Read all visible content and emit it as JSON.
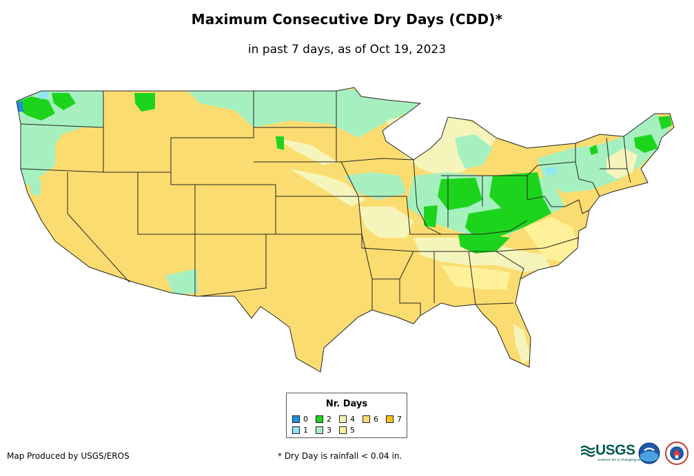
{
  "title": "Maximum Consecutive Dry Days (CDD)*",
  "subtitle": "in past 7 days, as of Oct 19, 2023",
  "legend": {
    "title": "Nr. Days",
    "items": [
      {
        "label": "0",
        "color": "#1f8fe0"
      },
      {
        "label": "1",
        "color": "#8fe6f5"
      },
      {
        "label": "2",
        "color": "#1dd41d"
      },
      {
        "label": "3",
        "color": "#a6f0c0"
      },
      {
        "label": "4",
        "color": "#f5f5bb"
      },
      {
        "label": "5",
        "color": "#fff19a"
      },
      {
        "label": "6",
        "color": "#fbdc70"
      },
      {
        "label": "7",
        "color": "#f7c21a"
      }
    ]
  },
  "footer": {
    "credit": "Map Produced by USGS/EROS",
    "note": "* Dry Day is rainfall < 0.04 in."
  },
  "logos": {
    "usgs": "USGS",
    "usgs_tagline": "science for a changing world"
  }
}
